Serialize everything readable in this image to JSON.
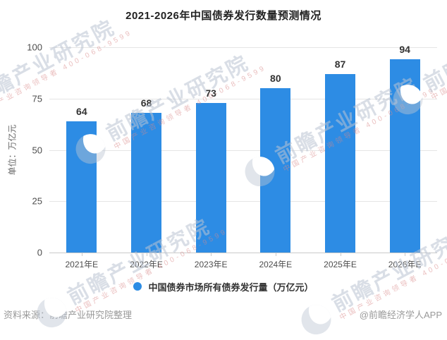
{
  "chart": {
    "title": "2021-2026年中国债券发行数量预测情况",
    "unit_label": "单位：万亿元",
    "legend_label": "中国债券市场所有债券发行量（万亿元）"
  },
  "chart_data": {
    "type": "bar",
    "title": "2021-2026年中国债券发行数量预测情况",
    "categories": [
      "2021年E",
      "2022年E",
      "2023年E",
      "2024年E",
      "2025年E",
      "2026年E"
    ],
    "values": [
      64,
      68,
      73,
      80,
      87,
      94
    ],
    "series_name": "中国债券市场所有债券发行量（万亿元）",
    "xlabel": "",
    "ylabel": "单位：万亿元",
    "ylim": [
      0,
      100
    ],
    "yticks": [
      0,
      25,
      50,
      75,
      100
    ],
    "bar_color": "#2d8ce4",
    "grid": true,
    "value_labels": true,
    "legend_position": "bottom"
  },
  "footer": {
    "source": "资料来源：前瞻产业研究院整理",
    "credit": "@前瞻经济学人APP"
  },
  "watermark": {
    "main": "前瞻产业研究院",
    "sub": "中国产业咨询领导者 400-068-9599"
  }
}
